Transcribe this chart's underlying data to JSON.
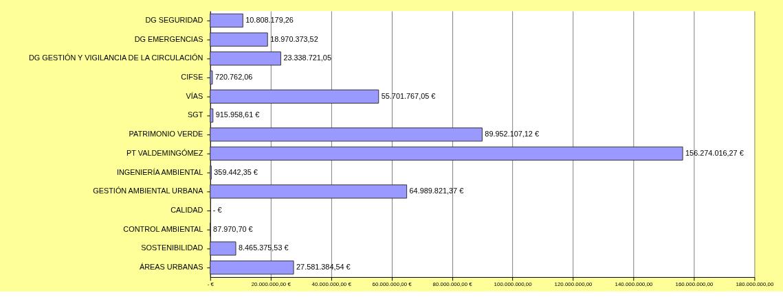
{
  "chart_data": {
    "type": "bar",
    "orientation": "horizontal",
    "categories": [
      "DG SEGURIDAD",
      "DG EMERGENCIAS",
      "DG GESTIÓN Y VIGILANCIA DE LA CIRCULACIÓN",
      "CIFSE",
      "VÍAS",
      "SGT",
      "PATRIMONIO VERDE",
      "PT VALDEMINGÓMEZ",
      "INGENIERÍA AMBIENTAL",
      "GESTIÓN AMBIENTAL URBANA",
      "CALIDAD",
      "CONTROL AMBIENTAL",
      "SOSTENIBILIDAD",
      "ÁREAS URBANAS"
    ],
    "values": [
      10808179.26,
      18970373.52,
      23338721.05,
      720762.06,
      55701767.05,
      915958.61,
      89952107.12,
      156274016.27,
      359442.35,
      64989821.37,
      0,
      87970.7,
      8465375.53,
      27581384.54
    ],
    "value_labels": [
      "10.808.179,26",
      "18.970.373,52",
      "23.338.721,05",
      "720.762,06",
      "55.701.767,05 €",
      "915.958,61 €",
      "89.952.107,12 €",
      "156.274.016,27 €",
      "359.442,35 €",
      "64.989.821,37 €",
      "-   €",
      "87.970,70 €",
      "8.465.375,53 €",
      "27.581.384,54 €"
    ],
    "color": "#9999ff",
    "xlim": [
      0,
      180000000
    ],
    "xticks": [
      {
        "value": 0,
        "label": "-   €"
      },
      {
        "value": 20000000,
        "label": "20.000.000,00 €"
      },
      {
        "value": 40000000,
        "label": "40.000.000,00 €"
      },
      {
        "value": 60000000,
        "label": "60.000.000,00 €"
      },
      {
        "value": 80000000,
        "label": "80.000.000,00 €"
      },
      {
        "value": 100000000,
        "label": "100.000.000,00"
      },
      {
        "value": 120000000,
        "label": "120.000.000,00"
      },
      {
        "value": 140000000,
        "label": "140.000.000,00"
      },
      {
        "value": 160000000,
        "label": "160.000.000,00"
      },
      {
        "value": 180000000,
        "label": "180.000.000,00"
      }
    ],
    "grid": "x"
  }
}
